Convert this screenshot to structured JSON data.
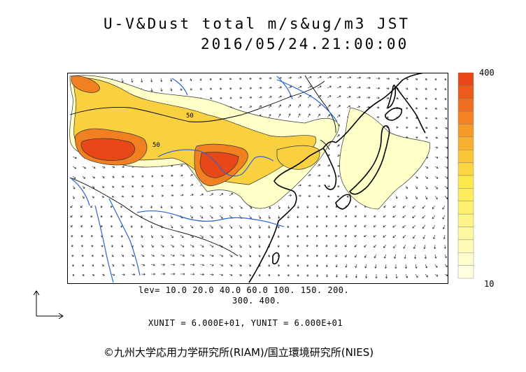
{
  "title": {
    "line1": "U-V&Dust total m/s&ug/m3 JST",
    "line2": "2016/05/24.21:00:00"
  },
  "map": {
    "variable": "dust total concentration with wind vectors",
    "region": "East Asia",
    "colors": {
      "land_line": "#000000",
      "river": "#2a62d6",
      "low": "#ffffc8",
      "mid": "#f8d040",
      "high": "#f08020",
      "peak": "#e84818"
    },
    "contour_labels": [
      "50",
      "50"
    ]
  },
  "legend": {
    "max_label": "400",
    "min_label": "10",
    "colors": [
      "#e84818",
      "#ec5a1c",
      "#f06e20",
      "#f48424",
      "#f69a28",
      "#f8b030",
      "#fac438",
      "#fcd640",
      "#fde84c",
      "#feec5c",
      "#fff070",
      "#fff488",
      "#fff8a0",
      "#fffbb8",
      "#ffffd0",
      "#ffffe0"
    ]
  },
  "levels": {
    "line1": "lev= 10.0 20.0 40.0 60.0 100. 150. 200.",
    "line2": "300. 400."
  },
  "units": "XUNIT = 6.000E+01, YUNIT = 6.000E+01",
  "credit": "©九州大学応用力学研究所(RIAM)/国立環境研究所(NIES)"
}
